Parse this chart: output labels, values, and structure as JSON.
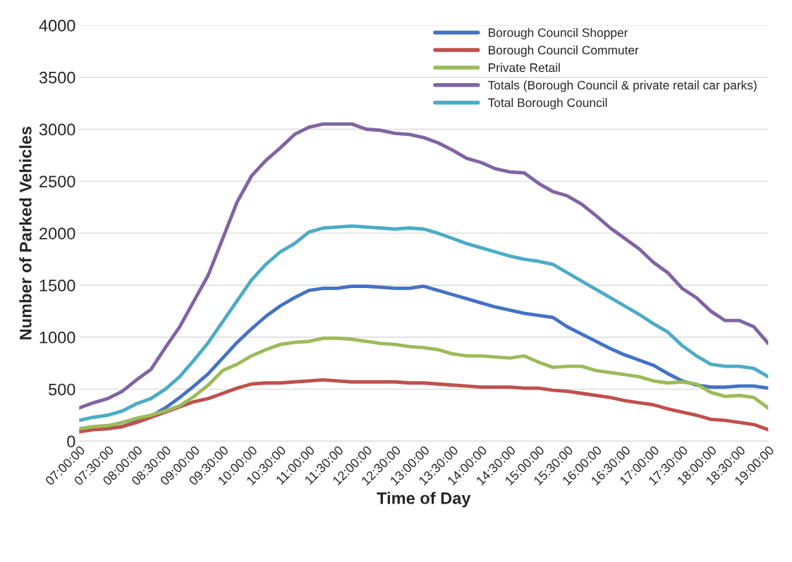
{
  "chart_data": {
    "type": "line",
    "xlabel": "Time of Day",
    "ylabel": "Number of Parked Vehicles",
    "x": [
      7,
      7.25,
      7.5,
      7.75,
      8,
      8.25,
      8.5,
      8.75,
      9,
      9.25,
      9.5,
      9.75,
      10,
      10.25,
      10.5,
      10.75,
      11,
      11.25,
      11.5,
      11.75,
      12,
      12.25,
      12.5,
      12.75,
      13,
      13.25,
      13.5,
      13.75,
      14,
      14.25,
      14.5,
      14.75,
      15,
      15.25,
      15.5,
      15.75,
      16,
      16.25,
      16.5,
      16.75,
      17,
      17.25,
      17.5,
      17.75,
      18,
      18.25,
      18.5,
      18.75,
      19
    ],
    "xlim": [
      7,
      19
    ],
    "xticks": [
      {
        "value": 7,
        "label": "07:00:00"
      },
      {
        "value": 7.5,
        "label": "07:30:00"
      },
      {
        "value": 8,
        "label": "08:00:00"
      },
      {
        "value": 8.5,
        "label": "08:30:00"
      },
      {
        "value": 9,
        "label": "09:00:00"
      },
      {
        "value": 9.5,
        "label": "09:30:00"
      },
      {
        "value": 10,
        "label": "10:00:00"
      },
      {
        "value": 10.5,
        "label": "10:30:00"
      },
      {
        "value": 11,
        "label": "11:00:00"
      },
      {
        "value": 11.5,
        "label": "11:30:00"
      },
      {
        "value": 12,
        "label": "12:00:00"
      },
      {
        "value": 12.5,
        "label": "12:30:00"
      },
      {
        "value": 13,
        "label": "13:00:00"
      },
      {
        "value": 13.5,
        "label": "13:30:00"
      },
      {
        "value": 14,
        "label": "14:00:00"
      },
      {
        "value": 14.5,
        "label": "14:30:00"
      },
      {
        "value": 15,
        "label": "15:00:00"
      },
      {
        "value": 15.5,
        "label": "15:30:00"
      },
      {
        "value": 16,
        "label": "16:00:00"
      },
      {
        "value": 16.5,
        "label": "16:30:00"
      },
      {
        "value": 17,
        "label": "17:00:00"
      },
      {
        "value": 17.5,
        "label": "17:30:00"
      },
      {
        "value": 18,
        "label": "18:00:00"
      },
      {
        "value": 18.5,
        "label": "18:30:00"
      },
      {
        "value": 19,
        "label": "19:00:00"
      }
    ],
    "ylim": [
      0,
      4000
    ],
    "yticks": [
      0,
      500,
      1000,
      1500,
      2000,
      2500,
      3000,
      3500,
      4000
    ],
    "grid": "y",
    "legend": "top right",
    "marker": "none",
    "line_style": "solid",
    "series": [
      {
        "name": "Borough Council Shopper",
        "color": "#4472c4",
        "values": [
          null,
          null,
          120,
          140,
          190,
          240,
          320,
          420,
          530,
          650,
          800,
          950,
          1080,
          1200,
          1300,
          1380,
          1450,
          1470,
          1470,
          1490,
          1490,
          1480,
          1470,
          1470,
          1490,
          1450,
          1410,
          1370,
          1330,
          1290,
          1260,
          1230,
          1210,
          1190,
          1100,
          1030,
          960,
          890,
          830,
          780,
          730,
          650,
          580,
          540,
          520,
          520,
          530,
          530,
          510
        ]
      },
      {
        "name": "Borough Council Commuter",
        "color": "#c0504d",
        "values": [
          90,
          110,
          120,
          140,
          180,
          230,
          280,
          330,
          380,
          410,
          460,
          510,
          550,
          560,
          560,
          570,
          580,
          590,
          580,
          570,
          570,
          570,
          570,
          560,
          560,
          550,
          540,
          530,
          520,
          520,
          520,
          510,
          510,
          490,
          480,
          460,
          440,
          420,
          390,
          370,
          350,
          310,
          280,
          250,
          210,
          200,
          180,
          160,
          110
        ]
      },
      {
        "name": "Private Retail",
        "color": "#9bbb59",
        "values": [
          120,
          140,
          150,
          180,
          220,
          250,
          290,
          340,
          430,
          540,
          680,
          740,
          820,
          880,
          930,
          950,
          960,
          990,
          990,
          980,
          960,
          940,
          930,
          910,
          900,
          880,
          840,
          820,
          820,
          810,
          800,
          820,
          760,
          710,
          720,
          720,
          680,
          660,
          640,
          620,
          580,
          560,
          570,
          550,
          470,
          430,
          440,
          420,
          320
        ]
      },
      {
        "name": "Totals (Borough Council & private retail car parks)",
        "color": "#8064a2",
        "values": [
          320,
          370,
          410,
          480,
          590,
          690,
          900,
          1100,
          1350,
          1600,
          1950,
          2300,
          2550,
          2700,
          2820,
          2950,
          3020,
          3050,
          3050,
          3050,
          3000,
          2990,
          2960,
          2950,
          2920,
          2870,
          2800,
          2720,
          2680,
          2620,
          2590,
          2580,
          2480,
          2400,
          2360,
          2280,
          2170,
          2050,
          1950,
          1850,
          1720,
          1620,
          1470,
          1380,
          1250,
          1160,
          1160,
          1100,
          940
        ]
      },
      {
        "name": "Total Borough Council",
        "color": "#4bacc6",
        "values": [
          200,
          230,
          250,
          290,
          360,
          410,
          500,
          620,
          780,
          950,
          1150,
          1350,
          1550,
          1700,
          1820,
          1900,
          2010,
          2050,
          2060,
          2070,
          2060,
          2050,
          2040,
          2050,
          2040,
          2000,
          1950,
          1900,
          1860,
          1820,
          1780,
          1750,
          1730,
          1700,
          1620,
          1540,
          1460,
          1380,
          1300,
          1220,
          1130,
          1050,
          920,
          820,
          740,
          720,
          720,
          700,
          620
        ]
      }
    ]
  }
}
